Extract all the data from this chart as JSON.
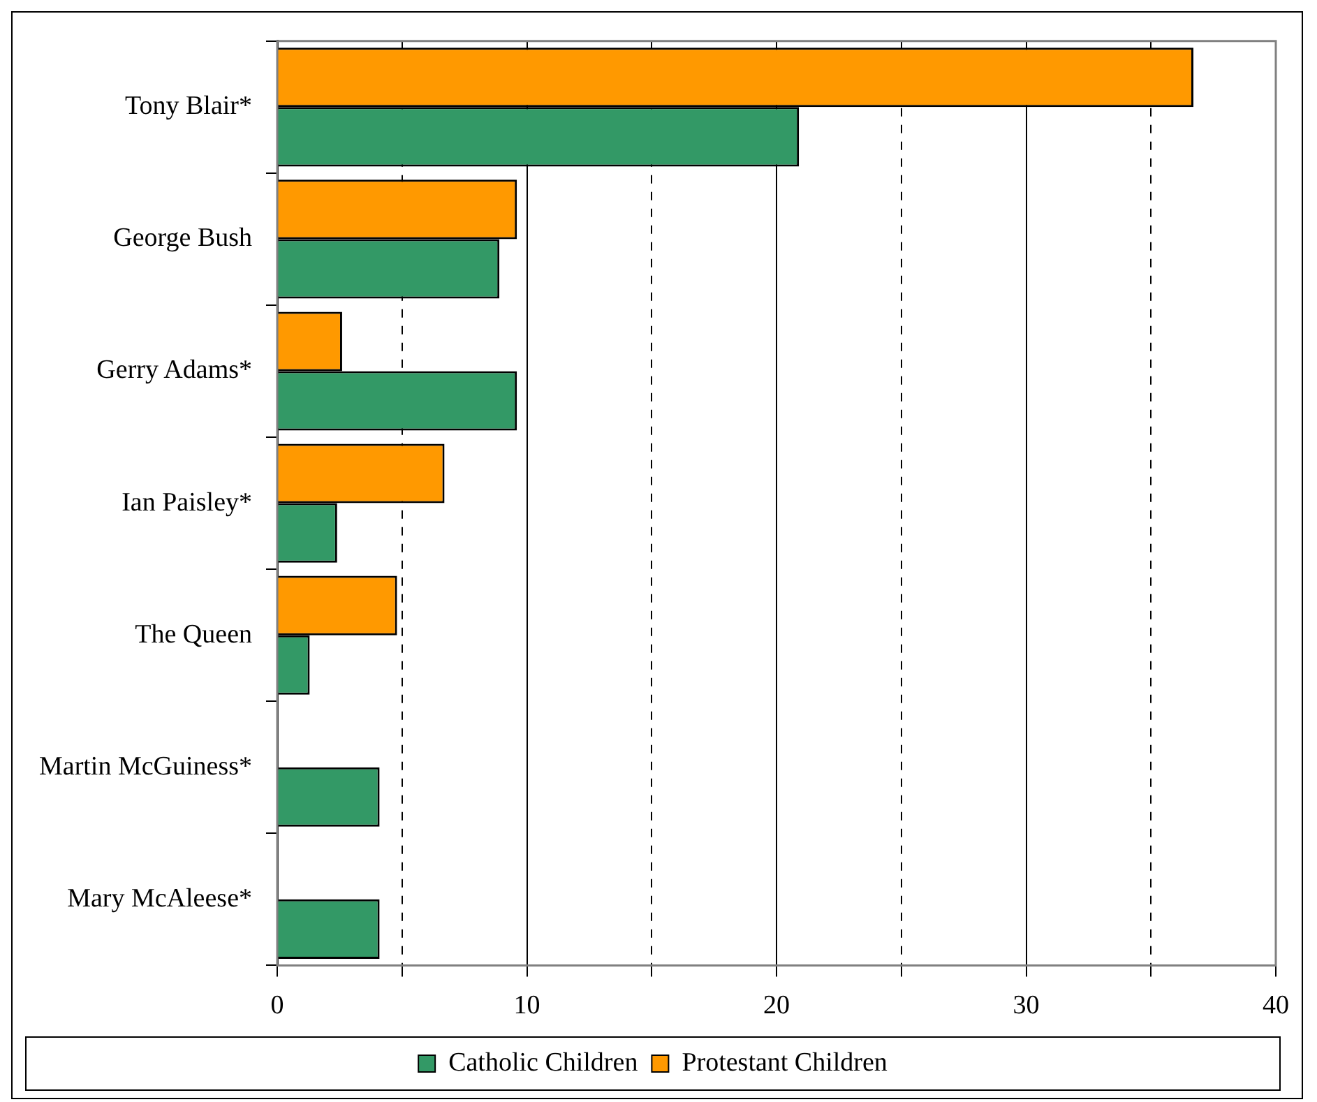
{
  "chart_data": {
    "type": "bar",
    "orientation": "horizontal",
    "categories": [
      "Tony Blair*",
      "George Bush",
      "Gerry Adams*",
      "Ian Paisley*",
      "The Queen",
      "Martin McGuiness*",
      "Mary McAleese*"
    ],
    "series": [
      {
        "name": "Catholic Children",
        "color": "#339966",
        "values": [
          20.9,
          8.9,
          9.6,
          2.4,
          1.3,
          4.1,
          4.1
        ]
      },
      {
        "name": "Protestant Children",
        "color": "#ff9900",
        "values": [
          36.7,
          9.6,
          2.6,
          6.7,
          4.8,
          null,
          null
        ]
      }
    ],
    "xlim": [
      0,
      40
    ],
    "xticks": [
      0,
      {
        "value": 5,
        "label": null
      },
      10,
      {
        "value": 15,
        "label": null
      },
      20,
      {
        "value": 25,
        "label": null
      },
      30,
      {
        "value": 35,
        "label": null
      },
      40
    ],
    "grid": "x",
    "legend": "bottom"
  }
}
